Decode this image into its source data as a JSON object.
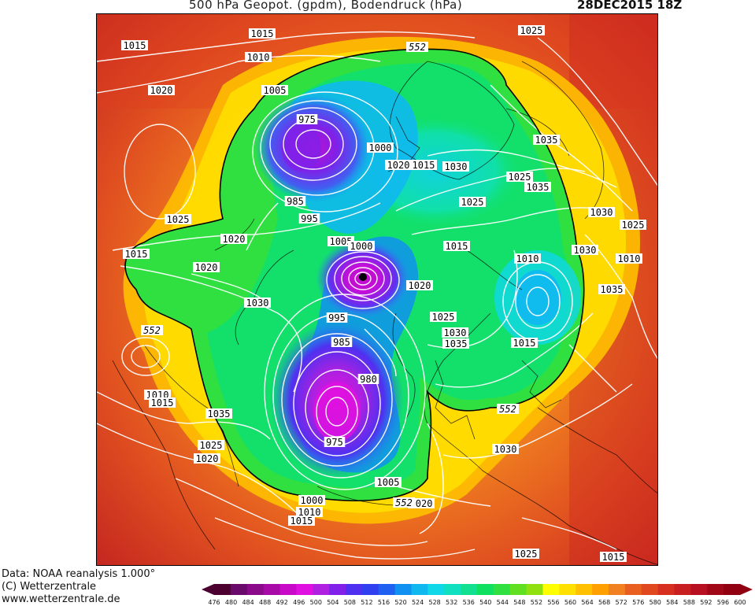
{
  "header": {
    "title": "500 hPa Geopot. (gpdm), Bodendruck (hPa)",
    "date": "28DEC2015 18Z"
  },
  "credits": {
    "line1": "Data: NOAA reanalysis 1.000°",
    "line2": "(C) Wetterzentrale",
    "line3": "www.wetterzentrale.de"
  },
  "colorbar": {
    "ticks": [
      "476",
      "480",
      "484",
      "488",
      "492",
      "496",
      "500",
      "504",
      "508",
      "512",
      "516",
      "520",
      "524",
      "528",
      "532",
      "536",
      "540",
      "544",
      "548",
      "552",
      "556",
      "560",
      "564",
      "568",
      "572",
      "576",
      "580",
      "584",
      "588",
      "592",
      "596",
      "600"
    ],
    "colors": [
      "#4b0030",
      "#6a0a6a",
      "#8a0a8a",
      "#a80aa8",
      "#c80ac8",
      "#e010e0",
      "#b020e0",
      "#8020e8",
      "#5030f0",
      "#3040f0",
      "#2060f0",
      "#1090f0",
      "#10b8f0",
      "#10d8e8",
      "#10e0c0",
      "#10e090",
      "#10e060",
      "#30e040",
      "#60e020",
      "#90e010",
      "#ffff00",
      "#ffe000",
      "#ffc000",
      "#ffa000",
      "#f08020",
      "#e86020",
      "#e04820",
      "#d83020",
      "#c82020",
      "#b81020",
      "#a00818",
      "#900010"
    ]
  },
  "map": {
    "pressure_labels": [
      {
        "t": "1015"
      },
      {
        "t": "1015"
      },
      {
        "t": "1010"
      },
      {
        "t": "1020"
      },
      {
        "t": "1005"
      },
      {
        "t": "975"
      },
      {
        "t": "1025"
      },
      {
        "t": "1000"
      },
      {
        "t": "1020"
      },
      {
        "t": "1015"
      },
      {
        "t": "1030"
      },
      {
        "t": "1025"
      },
      {
        "t": "1035"
      },
      {
        "t": "1035"
      },
      {
        "t": "1030"
      },
      {
        "t": "1025"
      },
      {
        "t": "985"
      },
      {
        "t": "995"
      },
      {
        "t": "1025"
      },
      {
        "t": "1020"
      },
      {
        "t": "1015"
      },
      {
        "t": "1005"
      },
      {
        "t": "1000"
      },
      {
        "t": "1015"
      },
      {
        "t": "1020"
      },
      {
        "t": "1010"
      },
      {
        "t": "1030"
      },
      {
        "t": "1020"
      },
      {
        "t": "1030"
      },
      {
        "t": "1035"
      },
      {
        "t": "995"
      },
      {
        "t": "985"
      },
      {
        "t": "1025"
      },
      {
        "t": "1030"
      },
      {
        "t": "1035"
      },
      {
        "t": "1015"
      },
      {
        "t": "1010"
      },
      {
        "t": "1015"
      },
      {
        "t": "980"
      },
      {
        "t": "1035"
      },
      {
        "t": "975"
      },
      {
        "t": "1025"
      },
      {
        "t": "1020"
      },
      {
        "t": "1030"
      },
      {
        "t": "1005"
      },
      {
        "t": "1000"
      },
      {
        "t": "1010"
      },
      {
        "t": "1015"
      },
      {
        "t": "1020"
      },
      {
        "t": "1025"
      },
      {
        "t": "1015"
      },
      {
        "t": "1025"
      },
      {
        "t": "1010"
      }
    ],
    "geopot_labels": [
      "552",
      "552",
      "552",
      "552"
    ]
  }
}
